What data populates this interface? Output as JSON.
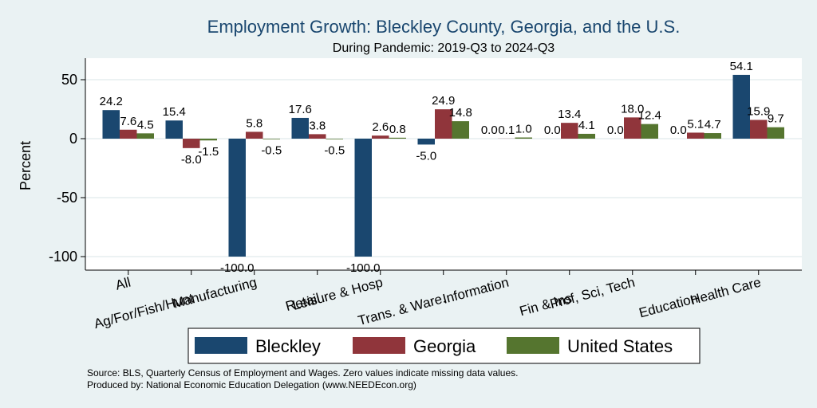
{
  "chart_data": {
    "type": "bar",
    "title": "Employment Growth: Bleckley County, Georgia, and the U.S.",
    "subtitle": "During Pandemic: 2019-Q3 to 2024-Q3",
    "ylabel": "Percent",
    "xlabel": "",
    "ylim": [
      -105,
      70
    ],
    "yticks": [
      50,
      0,
      -50,
      -100
    ],
    "grid": true,
    "categories": [
      "All",
      "Ag/For/Fish/Hunt",
      "Manufacturing",
      "Retail",
      "Leisure & Hosp",
      "Trans. & Ware.",
      "Information",
      "Fin & Ins",
      "Prof, Sci, Tech",
      "Education",
      "Health Care"
    ],
    "series": [
      {
        "name": "Bleckley",
        "color": "#1a476f",
        "values": [
          24.2,
          15.4,
          -100.0,
          17.6,
          -100.0,
          -5.0,
          0.0,
          0.0,
          0.0,
          0.0,
          54.1
        ],
        "labels": [
          "24.2",
          "15.4",
          "-100.0",
          "17.6",
          "-100.0",
          "-5.0",
          "0.0",
          "0.0",
          "0.0",
          "0.0",
          "54.1"
        ]
      },
      {
        "name": "Georgia",
        "color": "#90353b",
        "values": [
          7.6,
          -8.0,
          5.8,
          3.8,
          2.6,
          24.9,
          0.1,
          13.4,
          18.0,
          5.1,
          15.9
        ],
        "labels": [
          "7.6",
          "-8.0",
          "5.8",
          "3.8",
          "2.6",
          "24.9",
          "0.1",
          "13.4",
          "18.0",
          "5.1",
          "15.9"
        ]
      },
      {
        "name": "United States",
        "color": "#55752f",
        "values": [
          4.5,
          -1.5,
          -0.5,
          -0.5,
          0.8,
          14.8,
          1.0,
          4.1,
          12.4,
          4.7,
          9.7
        ],
        "labels": [
          "4.5",
          "-1.5",
          "-0.5",
          "-0.5",
          "0.8",
          "14.8",
          "1.0",
          "4.1",
          "12.4",
          "4.7",
          "9.7"
        ]
      }
    ],
    "legend_position": "bottom",
    "source": "Source: BLS, Quarterly Census of Employment and Wages. Zero values indicate missing data values.",
    "produced_by": "Produced by: National Economic Education Delegation (www.NEEDEcon.org)"
  }
}
